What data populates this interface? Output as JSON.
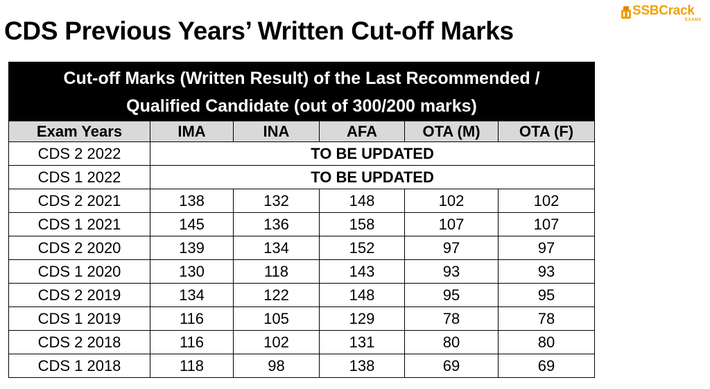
{
  "page": {
    "title": "CDS Previous Years’ Written Cut-off Marks"
  },
  "logo": {
    "text": "SSBCrack",
    "subtext": "EXAMS",
    "color": "#f2a000"
  },
  "table": {
    "caption_line1": "Cut-off Marks (Written Result) of the Last Recommended /",
    "caption_line2": "Qualified Candidate (out of 300/200 marks)",
    "headers": [
      "Exam Years",
      "IMA",
      "INA",
      "AFA",
      "OTA (M)",
      "OTA (F)"
    ],
    "pending_rows": [
      {
        "year": "CDS 2 2022",
        "status": "TO BE UPDATED"
      },
      {
        "year": "CDS 1 2022",
        "status": "TO BE UPDATED"
      }
    ],
    "rows": [
      {
        "year": "CDS 2 2021",
        "ima": "138",
        "ina": "132",
        "afa": "148",
        "ota_m": "102",
        "ota_f": "102"
      },
      {
        "year": "CDS 1 2021",
        "ima": "145",
        "ina": "136",
        "afa": "158",
        "ota_m": "107",
        "ota_f": "107"
      },
      {
        "year": "CDS 2 2020",
        "ima": "139",
        "ina": "134",
        "afa": "152",
        "ota_m": "97",
        "ota_f": "97"
      },
      {
        "year": "CDS 1 2020",
        "ima": "130",
        "ina": "118",
        "afa": "143",
        "ota_m": "93",
        "ota_f": "93"
      },
      {
        "year": "CDS 2 2019",
        "ima": "134",
        "ina": "122",
        "afa": "148",
        "ota_m": "95",
        "ota_f": "95"
      },
      {
        "year": "CDS 1 2019",
        "ima": "116",
        "ina": "105",
        "afa": "129",
        "ota_m": "78",
        "ota_f": "78"
      },
      {
        "year": "CDS 2 2018",
        "ima": "116",
        "ina": "102",
        "afa": "131",
        "ota_m": "80",
        "ota_f": "80"
      },
      {
        "year": "CDS 1 2018",
        "ima": "118",
        "ina": "98",
        "afa": "138",
        "ota_m": "69",
        "ota_f": "69"
      }
    ]
  },
  "colors": {
    "caption_bg": "#000000",
    "header_bg": "#d9d9d9"
  }
}
